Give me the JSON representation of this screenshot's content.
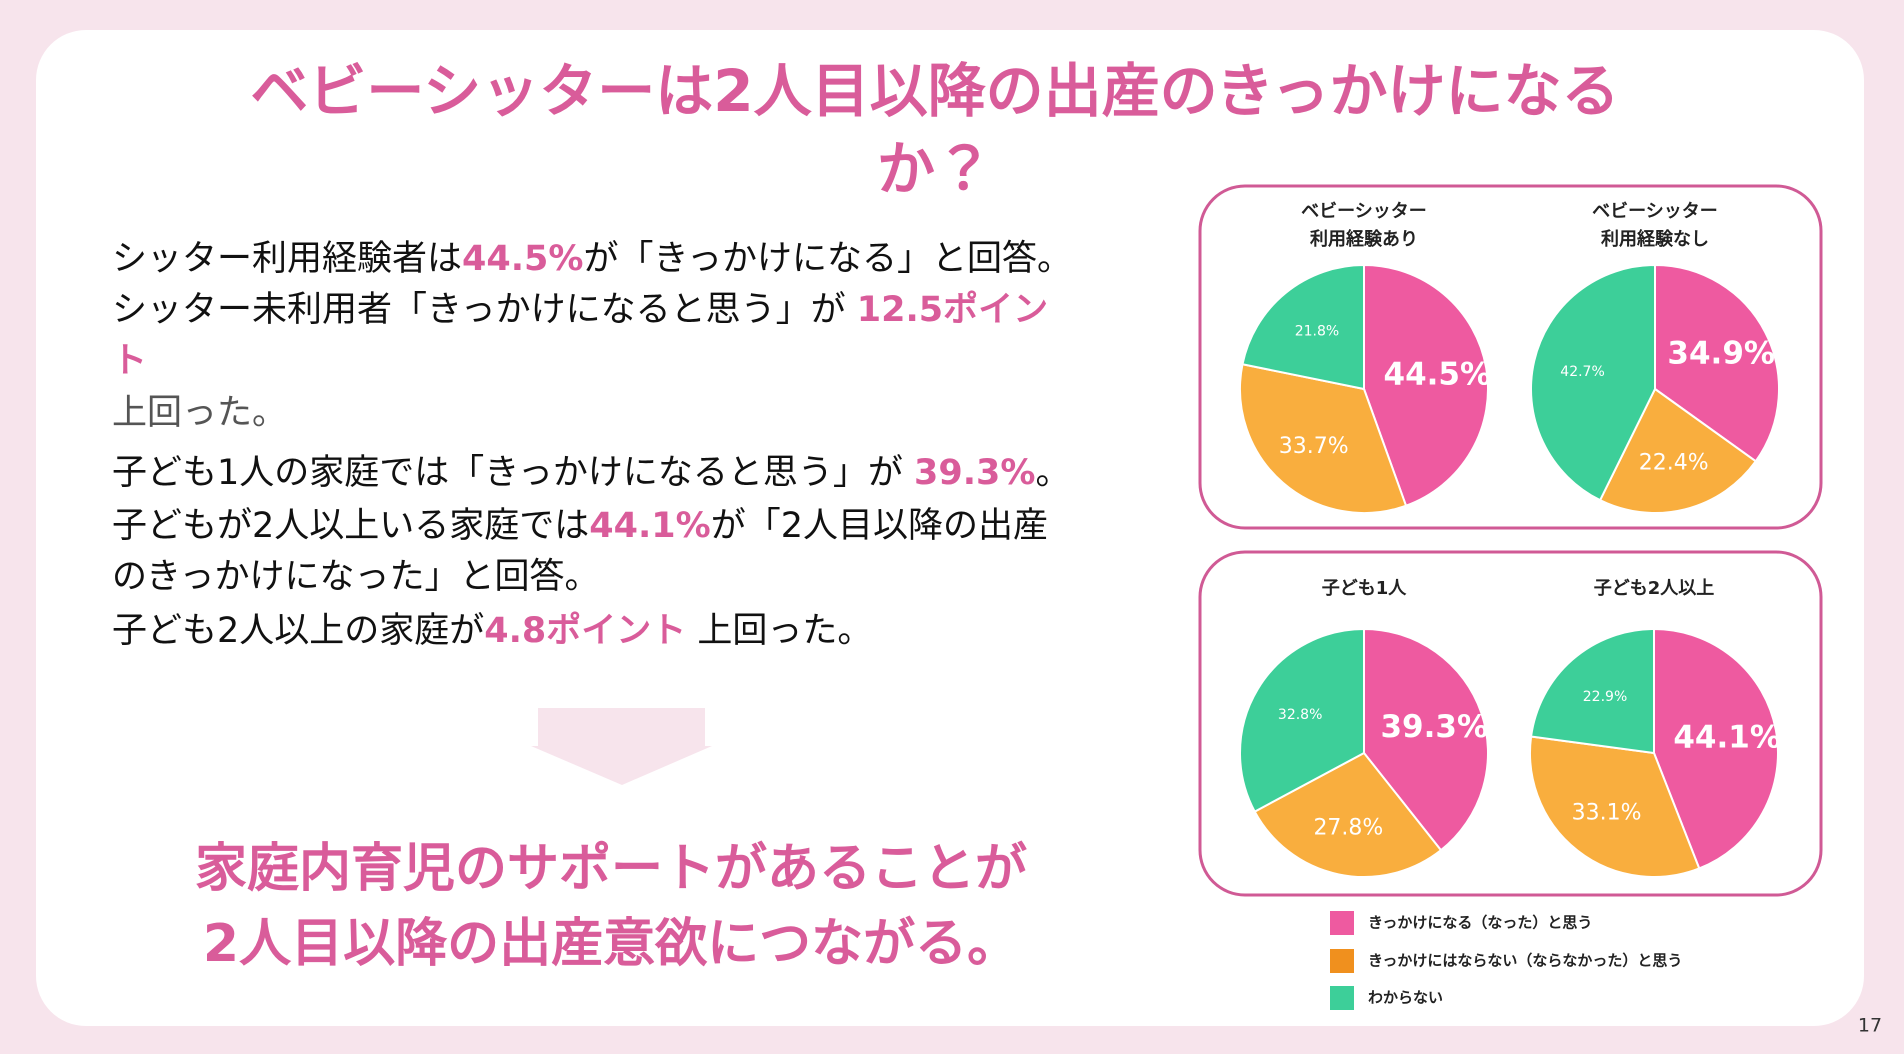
{
  "title": [
    "ベビーシッターは2人目以降の出産のきっかけになる",
    "か？"
  ],
  "body": [
    [
      "シッター利用経験者は",
      {
        "text": "44.5%",
        "color": "#d95c9a"
      },
      "が「きっかけになる」と回答。"
    ],
    [
      "シッター未利用者「きっかけになると思う」が ",
      {
        "text": "12.5ポイン",
        "color": "#d95c9a"
      }
    ],
    [
      {
        "text": "ト",
        "color": "#d95c9a"
      }
    ],
    [
      {
        "text": "上回った。",
        "color": "#555555"
      }
    ],
    [
      "子ども1人の家庭では「きっかけになると思う」が ",
      {
        "text": "39.3%",
        "color": "#d95c9a"
      },
      "。"
    ],
    [
      "子どもが2人以上いる家庭では",
      {
        "text": "44.1%",
        "color": "#d95c9a"
      },
      "が「2人目以降の出産"
    ],
    [
      "のきっかけになった」と回答。"
    ],
    [
      "子ども2人以上の家庭が",
      {
        "text": "4.8ポイント",
        "color": "#d95c9a"
      },
      " 上回った。"
    ]
  ],
  "conclusion": [
    "家庭内育児のサポートがあることが",
    "2人目以降の出産意欲につながる。"
  ],
  "chart_data": [
    {
      "type": "pie",
      "title": [
        "ベビーシッター",
        "利用経験あり"
      ],
      "values": [
        44.5,
        33.7,
        21.8
      ],
      "value_labels": [
        "44.5%",
        "33.7%",
        "21.8%"
      ],
      "colors": [
        "#ee5aa0",
        "#f9ae3e",
        "#3dcf99"
      ]
    },
    {
      "type": "pie",
      "title": [
        "ベビーシッター",
        "利用経験なし"
      ],
      "values": [
        34.9,
        22.4,
        42.7
      ],
      "value_labels": [
        "34.9%",
        "22.4%",
        "42.7%"
      ],
      "colors": [
        "#ee5aa0",
        "#f9ae3e",
        "#3dcf99"
      ]
    },
    {
      "type": "pie",
      "title": [
        "子ども1人"
      ],
      "values": [
        39.3,
        27.8,
        32.8
      ],
      "value_labels": [
        "39.3%",
        "27.8%",
        "32.8%"
      ],
      "colors": [
        "#ee5aa0",
        "#f9ae3e",
        "#3dcf99"
      ]
    },
    {
      "type": "pie",
      "title": [
        "子ども2人以上"
      ],
      "values": [
        44.1,
        33.1,
        22.9
      ],
      "value_labels": [
        "44.1%",
        "33.1%",
        "22.9%"
      ],
      "colors": [
        "#ee5aa0",
        "#f9ae3e",
        "#3dcf99"
      ]
    }
  ],
  "legend": [
    {
      "label": "きっかけになる（なった）と思う",
      "color": "#ee5aa0"
    },
    {
      "label": "きっかけにはならない（ならなかった）と思う",
      "color": "#f0901e"
    },
    {
      "label": "わからない",
      "color": "#3dcf99"
    }
  ],
  "page_number": "17"
}
